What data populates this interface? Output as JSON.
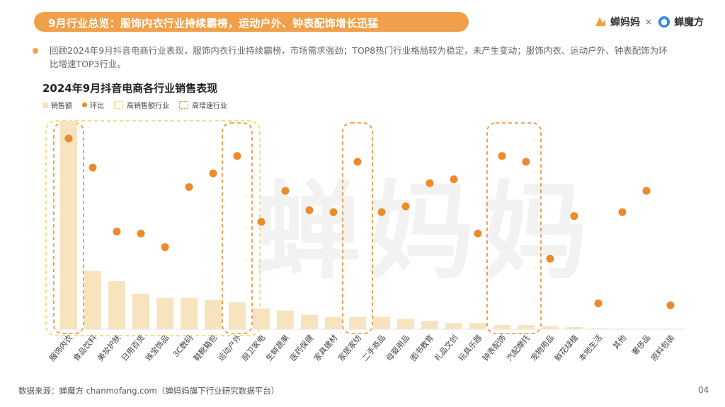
{
  "header": {
    "title": "9月行业总览：服饰内衣行业持续霸榜，运动户外、钟表配饰增长迅猛",
    "brand_left": "蝉妈妈",
    "separator": "×",
    "brand_right": "蝉魔方"
  },
  "summary": "回顾2024年9月抖音电商行业表现，服饰内衣行业持续霸榜，市场需求强劲；TOP8热门行业格局较为稳定，未产生变动；服饰内衣、运动户外、钟表配饰为环比增速TOP3行业。",
  "watermark": "蝉妈妈",
  "legend": {
    "bar": "销售额",
    "dot": "环比",
    "box_high_sales": "高销售额行业",
    "box_high_growth": "高增速行业"
  },
  "footer": {
    "source": "数据来源：蝉魔方 chanmofang.com（蝉妈妈旗下行业研究数据平台）",
    "page": "04"
  },
  "colors": {
    "accent": "#f0a04b",
    "dot": "#ec8a2c",
    "bar": "#f8e3bf",
    "box_sales": "#f5d35e",
    "box_growth": "#ec8a2c"
  },
  "chart_data": {
    "type": "bar",
    "title": "2024年9月抖音电商各行业销售表现",
    "categories": [
      "服饰内衣",
      "食品饮料",
      "美妆护肤",
      "日用百货",
      "珠宝饰品",
      "3C数码",
      "鞋靴箱包",
      "运动户外",
      "厨卫家电",
      "生鲜蔬果",
      "医药保健",
      "家具建材",
      "家居家纺",
      "二手商品",
      "母婴用品",
      "图书教育",
      "礼品文创",
      "玩具乐器",
      "钟表配饰",
      "汽配摩托",
      "宠物用品",
      "鲜花绿植",
      "本地生活",
      "其他",
      "奢侈品",
      "原料包装"
    ],
    "series": [
      {
        "name": "销售额",
        "type": "bar",
        "values": [
          100,
          28,
          23,
          17,
          15,
          15,
          14,
          13,
          10,
          9,
          7,
          6,
          6,
          6,
          5,
          4,
          3,
          3,
          2,
          2,
          1.5,
          1,
          0.5,
          0.3,
          0.2,
          0.1
        ]
      },
      {
        "name": "环比",
        "type": "dot",
        "values": [
          100,
          85,
          52,
          51,
          44,
          75,
          82,
          91,
          57,
          73,
          63,
          62,
          88,
          62,
          65,
          77,
          79,
          51,
          91,
          88,
          38,
          60,
          15,
          62,
          73,
          14
        ]
      }
    ],
    "highlight_high_sales": [
      "服饰内衣",
      "食品饮料",
      "美妆护肤",
      "日用百货",
      "珠宝饰品",
      "3C数码",
      "鞋靴箱包",
      "运动户外"
    ],
    "highlight_high_growth": [
      "服饰内衣",
      "运动户外",
      "家居家纺",
      "钟表配饰",
      "汽配摩托"
    ],
    "ylim": [
      0,
      100
    ]
  }
}
